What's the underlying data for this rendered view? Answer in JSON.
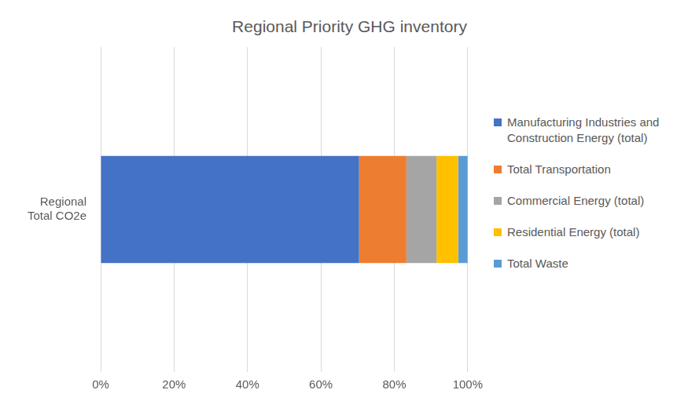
{
  "chart_data": {
    "type": "bar",
    "title": "Regional Priority GHG inventory",
    "orientation": "horizontal",
    "stacked": true,
    "categories": [
      "Regional Total CO2e"
    ],
    "series": [
      {
        "name": "Manufacturing Industries and Construction Energy (total)",
        "color": "#4472c4",
        "values": [
          70.4
        ]
      },
      {
        "name": "Total Transportation",
        "color": "#ed7d31",
        "values": [
          12.9
        ]
      },
      {
        "name": "Commercial Energy (total)",
        "color": "#a5a5a5",
        "values": [
          8.2
        ]
      },
      {
        "name": "Residential Energy (total)",
        "color": "#ffc000",
        "values": [
          5.9
        ]
      },
      {
        "name": "Total Waste",
        "color": "#5b9bd5",
        "values": [
          2.6
        ]
      }
    ],
    "xlim": [
      0,
      100
    ],
    "xticks": [
      {
        "value": 0,
        "label": "0%"
      },
      {
        "value": 20,
        "label": "20%"
      },
      {
        "value": 40,
        "label": "40%"
      },
      {
        "value": 60,
        "label": "60%"
      },
      {
        "value": 80,
        "label": "80%"
      },
      {
        "value": 100,
        "label": "100%"
      }
    ],
    "grid": true,
    "legend": "right"
  }
}
